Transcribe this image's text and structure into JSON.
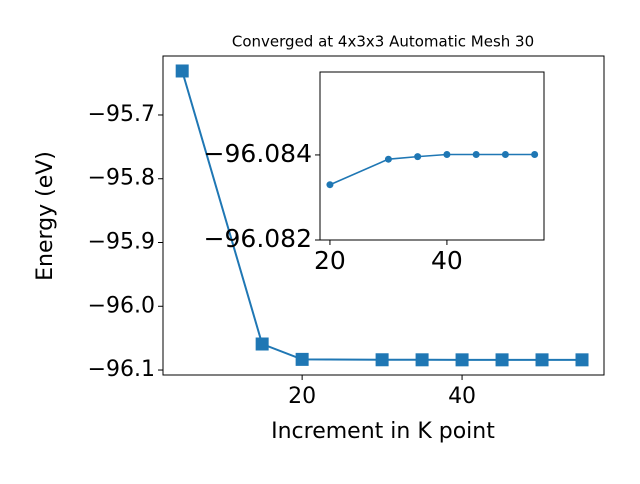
{
  "chart_data": [
    {
      "type": "line",
      "title": "Converged at 4x3x3 Automatic Mesh 30",
      "x_label": "Increment in K point",
      "y_label": "Energy (eV)",
      "x": [
        5,
        15,
        20,
        30,
        35,
        40,
        45,
        50,
        55
      ],
      "values": [
        -95.631,
        -96.0592,
        -96.0833,
        -96.0839,
        -96.08396,
        -96.08401,
        -96.08401,
        -96.08401,
        -96.08401
      ],
      "color": "#1f77b4",
      "marker": "square",
      "xlim": [
        2.6,
        57.75
      ],
      "ylim": [
        -96.1078,
        -95.6075
      ],
      "xticks": [
        20,
        40
      ],
      "yticks": [
        {
          "value": -95.7,
          "label": "−95.7"
        },
        {
          "value": -95.8,
          "label": "−95.8"
        },
        {
          "value": -95.9,
          "label": "−95.9"
        },
        {
          "value": -96.0,
          "label": "−96.0"
        },
        {
          "value": -96.1,
          "label": "−96.1"
        }
      ]
    },
    {
      "type": "line",
      "x": [
        20,
        30,
        35,
        40,
        45,
        50,
        55
      ],
      "values": [
        -96.0833,
        -96.0839,
        -96.08396,
        -96.08401,
        -96.08401,
        -96.08401,
        -96.08401
      ],
      "color": "#1f77b4",
      "marker": "circle",
      "xlim": [
        18.3,
        56.6
      ],
      "ylim": [
        -96.082,
        -96.08595
      ],
      "xticks": [
        20,
        40
      ],
      "yticks": [
        {
          "value": -96.084,
          "label": "−96.084"
        },
        {
          "value": -96.082,
          "label": "−96.082"
        }
      ]
    }
  ]
}
